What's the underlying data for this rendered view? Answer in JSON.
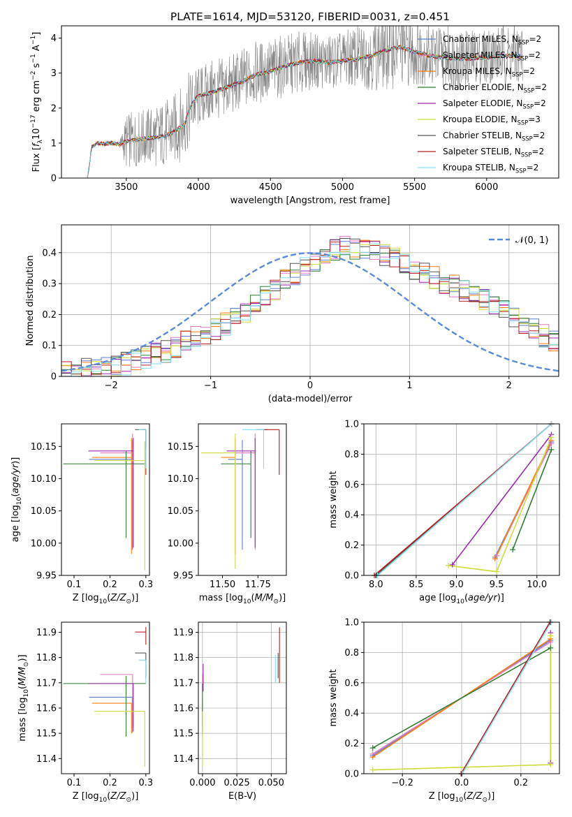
{
  "figure": {
    "title": "PLATE=1614, MJD=53120, FIBERID=0031, z=0.451",
    "series_colors": [
      "#5b7fd1",
      "#e377c2",
      "#ff7f0e",
      "#2e7d32",
      "#9c27b0",
      "#cddc39",
      "#555555",
      "#b71c1c",
      "#80deea"
    ]
  },
  "chart_data": [
    {
      "id": "spectrum",
      "type": "line",
      "title": "PLATE=1614, MJD=53120, FIBERID=0031, z=0.451",
      "xlabel": "wavelength [Angstrom, rest frame]",
      "ylabel": "Flux [f_λ 10^-17 erg cm^-2 s^-1 A^-1]",
      "xlim": [
        3050,
        6500
      ],
      "ylim": [
        0,
        4.35
      ],
      "xticks": [
        3500,
        4000,
        4500,
        5000,
        5500,
        6000
      ],
      "yticks": [
        0,
        1,
        2,
        3,
        4
      ],
      "grid": false,
      "legend_placement": "top-right",
      "legend": [
        "Chabrier MILES, N_SSP=2",
        "Salpeter MILES, N_SSP=2",
        "Kroupa MILES, N_SSP=2",
        "Chabrier ELODIE, N_SSP=2",
        "Salpeter ELODIE, N_SSP=2",
        "Kroupa ELODIE, N_SSP=3",
        "Chabrier STELIB, N_SSP=2",
        "Salpeter STELIB, N_SSP=2",
        "Kroupa STELIB, N_SSP=2"
      ],
      "data_color": "#808080",
      "data_x": [
        3230,
        3260,
        3300,
        3350,
        3400,
        3450,
        3500,
        3600,
        3700,
        3800,
        3900,
        3950,
        4000,
        4100,
        4200,
        4300,
        4400,
        4500,
        4600,
        4700,
        4800,
        4900,
        5000,
        5100,
        5200,
        5300,
        5400,
        5500,
        5600,
        5700,
        5800,
        5900,
        6000,
        6100,
        6200,
        6250
      ],
      "data_y": [
        0.0,
        0.85,
        1.0,
        0.95,
        1.0,
        0.95,
        1.05,
        1.15,
        1.2,
        1.3,
        1.6,
        2.1,
        2.3,
        2.5,
        2.6,
        2.8,
        3.0,
        3.1,
        3.2,
        3.3,
        3.35,
        3.3,
        3.4,
        3.45,
        3.5,
        3.7,
        3.8,
        3.6,
        3.55,
        3.5,
        3.4,
        3.45,
        3.5,
        3.55,
        3.5,
        3.55
      ],
      "data_noise": [
        0,
        0.02,
        0.05,
        0.05,
        0.05,
        0.05,
        0.8,
        0.8,
        0.9,
        1.0,
        1.1,
        1.1,
        0.9,
        0.9,
        0.9,
        0.9,
        0.9,
        0.9,
        0.9,
        0.9,
        0.8,
        0.8,
        0.8,
        0.9,
        1.0,
        1.2,
        1.2,
        1.0,
        0.9,
        0.9,
        0.9,
        0.8,
        0.8,
        0.9,
        0.9,
        0.9
      ],
      "model_x": [
        3230,
        3260,
        3300,
        3350,
        3400,
        3450,
        3500,
        3600,
        3700,
        3800,
        3900,
        3950,
        4000,
        4100,
        4200,
        4300,
        4400,
        4500,
        4600,
        4700,
        4800,
        4900,
        5000,
        5100,
        5200,
        5300,
        5400,
        5500,
        5600,
        5700,
        5800,
        5900,
        6000,
        6100,
        6200,
        6250
      ],
      "model_y": [
        0.0,
        0.88,
        1.0,
        0.98,
        1.0,
        0.97,
        1.05,
        1.12,
        1.15,
        1.25,
        1.5,
        2.1,
        2.35,
        2.45,
        2.6,
        2.75,
        2.95,
        3.05,
        3.2,
        3.3,
        3.35,
        3.3,
        3.35,
        3.4,
        3.5,
        3.65,
        3.75,
        3.6,
        3.5,
        3.45,
        3.4,
        3.42,
        3.45,
        3.5,
        3.48,
        3.5
      ]
    },
    {
      "id": "residuals",
      "type": "histogram",
      "xlabel": "(data-model)/error",
      "ylabel": "Normed distribution",
      "xlim": [
        -2.5,
        2.5
      ],
      "ylim": [
        0,
        0.49
      ],
      "xticks": [
        -2,
        -1,
        0,
        1,
        2
      ],
      "yticks": [
        0.0,
        0.1,
        0.2,
        0.3,
        0.4
      ],
      "grid": true,
      "legend_placement": "top-right",
      "legend": [
        "𝒩(0, 1)"
      ],
      "gaussian_color": "#5b8bd8",
      "bin_edges_start": -2.5,
      "bin_width": 0.1,
      "base_heights": [
        0.02,
        0.021,
        0.024,
        0.027,
        0.03,
        0.035,
        0.042,
        0.05,
        0.06,
        0.07,
        0.082,
        0.095,
        0.11,
        0.125,
        0.14,
        0.155,
        0.17,
        0.19,
        0.21,
        0.235,
        0.26,
        0.285,
        0.31,
        0.33,
        0.355,
        0.375,
        0.395,
        0.41,
        0.42,
        0.415,
        0.41,
        0.405,
        0.395,
        0.38,
        0.365,
        0.35,
        0.335,
        0.32,
        0.305,
        0.29,
        0.275,
        0.26,
        0.245,
        0.225,
        0.21,
        0.19,
        0.17,
        0.15,
        0.13,
        0.115,
        0.1,
        0.09,
        0.08,
        0.07,
        0.062,
        0.055,
        0.05,
        0.046,
        0.042,
        0.04
      ]
    },
    {
      "id": "age_vs_Z",
      "type": "scatter",
      "xlabel": "Z [log10(Z/Z⊙)]",
      "ylabel": "age  [log10(age/yr)]",
      "xlim": [
        0.065,
        0.31
      ],
      "ylim": [
        9.95,
        10.185
      ],
      "xticks": [
        0.1,
        0.2,
        0.3
      ],
      "xticklabels": [
        "0.1",
        "0.2",
        "0.3"
      ],
      "yticks": [
        9.95,
        10.0,
        10.05,
        10.1,
        10.15
      ],
      "yticklabels": [
        "9.95",
        "10.00",
        "10.05",
        "10.10",
        "10.15"
      ],
      "grid": false,
      "points": [
        {
          "x": 0.262,
          "y": 10.13,
          "xerr": [
            0.12,
            0.0
          ],
          "yerr": [
            0.14,
            0.03
          ]
        },
        {
          "x": 0.263,
          "y": 10.14,
          "xerr": [
            0.09,
            0.0
          ],
          "yerr": [
            0.15,
            0.03
          ]
        },
        {
          "x": 0.26,
          "y": 10.133,
          "xerr": [
            0.11,
            0.0
          ],
          "yerr": [
            0.15,
            0.03
          ]
        },
        {
          "x": 0.245,
          "y": 10.123,
          "xerr": [
            0.175,
            0.055
          ],
          "yerr": [
            0.115,
            0.02
          ]
        },
        {
          "x": 0.265,
          "y": 10.143,
          "xerr": [
            0.125,
            0.0
          ],
          "yerr": [
            0.15,
            0.02
          ]
        },
        {
          "x": 0.297,
          "y": 10.128,
          "xerr": [
            0.14,
            0.0
          ],
          "yerr": [
            0.17,
            0.03
          ]
        },
        {
          "x": 0.3,
          "y": 10.176,
          "xerr": [
            0.03,
            0.0
          ],
          "yerr": [
            0.03,
            0.0
          ]
        },
        {
          "x": 0.3,
          "y": 10.176,
          "xerr": [
            0.01,
            0.0
          ],
          "yerr": [
            0.07,
            0.0
          ]
        },
        {
          "x": 0.3,
          "y": 10.176,
          "xerr": [
            0.02,
            0.0
          ],
          "yerr": [
            0.06,
            0.0
          ]
        }
      ]
    },
    {
      "id": "age_vs_mass",
      "type": "scatter",
      "xlabel": "mass [log10(M/M⊙)]",
      "ylabel": "",
      "xlim": [
        11.33,
        11.95
      ],
      "ylim": [
        9.95,
        10.185
      ],
      "xticks": [
        11.5,
        11.75
      ],
      "xticklabels": [
        "11.50",
        "11.75"
      ],
      "yticks": [
        9.95,
        10.0,
        10.05,
        10.1,
        10.15
      ],
      "yticklabels": [
        "9.95",
        "10.00",
        "10.05",
        "10.10",
        "10.15"
      ],
      "grid": false,
      "points": [
        {
          "x": 11.64,
          "y": 10.13,
          "xerr": [
            0.1,
            0.0
          ],
          "yerr": [
            0.14,
            0.03
          ]
        },
        {
          "x": 11.73,
          "y": 10.14,
          "xerr": [
            0.14,
            0.0
          ],
          "yerr": [
            0.15,
            0.03
          ]
        },
        {
          "x": 11.59,
          "y": 10.133,
          "xerr": [
            0.1,
            0.0
          ],
          "yerr": [
            0.15,
            0.03
          ]
        },
        {
          "x": 11.7,
          "y": 10.123,
          "xerr": [
            0.21,
            0.0
          ],
          "yerr": [
            0.115,
            0.02
          ]
        },
        {
          "x": 11.73,
          "y": 10.143,
          "xerr": [
            0.2,
            0.0
          ],
          "yerr": [
            0.15,
            0.02
          ]
        },
        {
          "x": 11.59,
          "y": 10.14,
          "xerr": [
            0.24,
            0.0
          ],
          "yerr": [
            0.18,
            0.03
          ]
        },
        {
          "x": 11.82,
          "y": 10.176,
          "xerr": [
            0.08,
            0.0
          ],
          "yerr": [
            0.0,
            0.0
          ]
        },
        {
          "x": 11.9,
          "y": 10.176,
          "xerr": [
            0.1,
            0.0
          ],
          "yerr": [
            0.07,
            0.0
          ]
        },
        {
          "x": 11.79,
          "y": 10.176,
          "xerr": [
            0.15,
            0.0
          ],
          "yerr": [
            0.06,
            0.0
          ]
        }
      ]
    },
    {
      "id": "massweight_vs_age",
      "type": "line",
      "xlabel": "age  [log10(age/yr)]",
      "ylabel": "mass weight",
      "xlim": [
        7.85,
        10.28
      ],
      "ylim": [
        0,
        1.0
      ],
      "xticks": [
        8.0,
        8.5,
        9.0,
        9.5,
        10.0
      ],
      "xticklabels": [
        "8.0",
        "8.5",
        "9.0",
        "9.5",
        "10.0"
      ],
      "yticks": [
        0.0,
        0.2,
        0.4,
        0.6,
        0.8,
        1.0
      ],
      "yticklabels": [
        "0.0",
        "0.2",
        "0.4",
        "0.6",
        "0.8",
        "1.0"
      ],
      "grid": true,
      "series": [
        {
          "x": [
            9.48,
            10.18
          ],
          "y": [
            0.12,
            0.88
          ]
        },
        {
          "x": [
            9.5,
            10.18
          ],
          "y": [
            0.13,
            0.87
          ]
        },
        {
          "x": [
            9.48,
            10.18
          ],
          "y": [
            0.11,
            0.89
          ]
        },
        {
          "x": [
            9.7,
            10.18
          ],
          "y": [
            0.17,
            0.83
          ]
        },
        {
          "x": [
            8.95,
            10.18
          ],
          "y": [
            0.07,
            0.93
          ]
        },
        {
          "x": [
            8.9,
            9.5,
            10.18
          ],
          "y": [
            0.065,
            0.025,
            0.91
          ]
        },
        {
          "x": [
            8.0,
            10.18
          ],
          "y": [
            0.0,
            1.0
          ]
        },
        {
          "x": [
            7.98,
            10.18
          ],
          "y": [
            0.0,
            1.0
          ]
        },
        {
          "x": [
            8.02,
            10.18
          ],
          "y": [
            0.0,
            1.0
          ]
        }
      ]
    },
    {
      "id": "mass_vs_Z",
      "type": "scatter",
      "xlabel": "Z [log10(Z/Z⊙)]",
      "ylabel": "mass [log10(M/M⊙)]",
      "xlim": [
        0.065,
        0.31
      ],
      "ylim": [
        11.34,
        11.94
      ],
      "xticks": [
        0.1,
        0.2,
        0.3
      ],
      "xticklabels": [
        "0.1",
        "0.2",
        "0.3"
      ],
      "yticks": [
        11.4,
        11.5,
        11.6,
        11.7,
        11.8,
        11.9
      ],
      "yticklabels": [
        "11.4",
        "11.5",
        "11.6",
        "11.7",
        "11.8",
        "11.9"
      ],
      "grid": false,
      "points": [
        {
          "x": 0.262,
          "y": 11.643,
          "xerr": [
            0.12,
            0.0
          ],
          "yerr": [
            0.14,
            0.0
          ]
        },
        {
          "x": 0.263,
          "y": 11.733,
          "xerr": [
            0.09,
            0.0
          ],
          "yerr": [
            0.21,
            0.0
          ]
        },
        {
          "x": 0.26,
          "y": 11.619,
          "xerr": [
            0.11,
            0.0
          ],
          "yerr": [
            0.12,
            0.0
          ]
        },
        {
          "x": 0.245,
          "y": 11.697,
          "xerr": [
            0.175,
            0.055
          ],
          "yerr": [
            0.21,
            0.03
          ]
        },
        {
          "x": 0.265,
          "y": 11.697,
          "xerr": [
            0.125,
            0.0
          ],
          "yerr": [
            0.19,
            0.0
          ]
        },
        {
          "x": 0.297,
          "y": 11.587,
          "xerr": [
            0.14,
            0.0
          ],
          "yerr": [
            0.22,
            0.0
          ]
        },
        {
          "x": 0.3,
          "y": 11.818,
          "xerr": [
            0.03,
            0.0
          ],
          "yerr": [
            0.1,
            0.0
          ]
        },
        {
          "x": 0.3,
          "y": 11.901,
          "xerr": [
            0.03,
            0.0
          ],
          "yerr": [
            0.05,
            0.02
          ]
        },
        {
          "x": 0.3,
          "y": 11.79,
          "xerr": [
            0.02,
            0.0
          ],
          "yerr": [
            0.09,
            0.0
          ]
        }
      ]
    },
    {
      "id": "mass_vs_EBV",
      "type": "scatter",
      "xlabel": "E(B-V)",
      "ylabel": "",
      "xlim": [
        -0.003,
        0.061
      ],
      "ylim": [
        11.34,
        11.94
      ],
      "xticks": [
        0.0,
        0.025,
        0.05
      ],
      "xticklabels": [
        "0.000",
        "0.025",
        "0.050"
      ],
      "yticks": [
        11.4,
        11.5,
        11.6,
        11.7,
        11.8,
        11.9
      ],
      "yticklabels": [
        "11.4",
        "11.5",
        "11.6",
        "11.7",
        "11.8",
        "11.9"
      ],
      "grid": true,
      "points": [
        {
          "x": 0.0,
          "y": 11.643,
          "xerr": [
            0,
            0
          ],
          "yerr": [
            0.14,
            0.0
          ]
        },
        {
          "x": 0.0,
          "y": 11.733,
          "xerr": [
            0,
            0
          ],
          "yerr": [
            0.21,
            0.0
          ]
        },
        {
          "x": 0.0,
          "y": 11.619,
          "xerr": [
            0,
            0
          ],
          "yerr": [
            0.12,
            0.0
          ]
        },
        {
          "x": 0.0,
          "y": 11.697,
          "xerr": [
            0,
            0
          ],
          "yerr": [
            0.21,
            0.0
          ]
        },
        {
          "x": 0.0005,
          "y": 11.755,
          "xerr": [
            0,
            0
          ],
          "yerr": [
            0.09,
            0.02
          ]
        },
        {
          "x": 0.0,
          "y": 11.587,
          "xerr": [
            0,
            0
          ],
          "yerr": [
            0.22,
            0.0
          ]
        },
        {
          "x": 0.055,
          "y": 11.818,
          "xerr": [
            0,
            0
          ],
          "yerr": [
            0.1,
            0.0
          ]
        },
        {
          "x": 0.056,
          "y": 11.85,
          "xerr": [
            0,
            0
          ],
          "yerr": [
            0.15,
            0.07
          ]
        },
        {
          "x": 0.053,
          "y": 11.77,
          "xerr": [
            0,
            0
          ],
          "yerr": [
            0.07,
            0.04
          ]
        }
      ]
    },
    {
      "id": "massweight_vs_Z",
      "type": "line",
      "xlabel": "Z [log10(Z/Z⊙)]",
      "ylabel": "mass weight",
      "xlim": [
        -0.33,
        0.33
      ],
      "ylim": [
        0,
        1.0
      ],
      "xticks": [
        -0.2,
        0.0,
        0.2
      ],
      "xticklabels": [
        "−0.2",
        "0.0",
        "0.2"
      ],
      "yticks": [
        0.0,
        0.2,
        0.4,
        0.6,
        0.8,
        1.0
      ],
      "yticklabels": [
        "0.0",
        "0.2",
        "0.4",
        "0.6",
        "0.8",
        "1.0"
      ],
      "grid": true,
      "series": [
        {
          "x": [
            -0.3,
            0.3
          ],
          "y": [
            0.12,
            0.88
          ]
        },
        {
          "x": [
            -0.3,
            0.3
          ],
          "y": [
            0.13,
            0.87
          ]
        },
        {
          "x": [
            -0.3,
            0.3
          ],
          "y": [
            0.11,
            0.89
          ]
        },
        {
          "x": [
            -0.3,
            0.3
          ],
          "y": [
            0.17,
            0.83
          ]
        },
        {
          "x": [
            0.3,
            0.3
          ],
          "y": [
            0.07,
            0.93
          ]
        },
        {
          "x": [
            -0.3,
            0.3,
            0.3
          ],
          "y": [
            0.025,
            0.06,
            0.91
          ]
        },
        {
          "x": [
            0.0,
            0.3
          ],
          "y": [
            0.0,
            1.0
          ]
        },
        {
          "x": [
            -0.002,
            0.298
          ],
          "y": [
            0.0,
            1.0
          ]
        },
        {
          "x": [
            0.002,
            0.302
          ],
          "y": [
            0.0,
            1.0
          ]
        }
      ]
    }
  ]
}
